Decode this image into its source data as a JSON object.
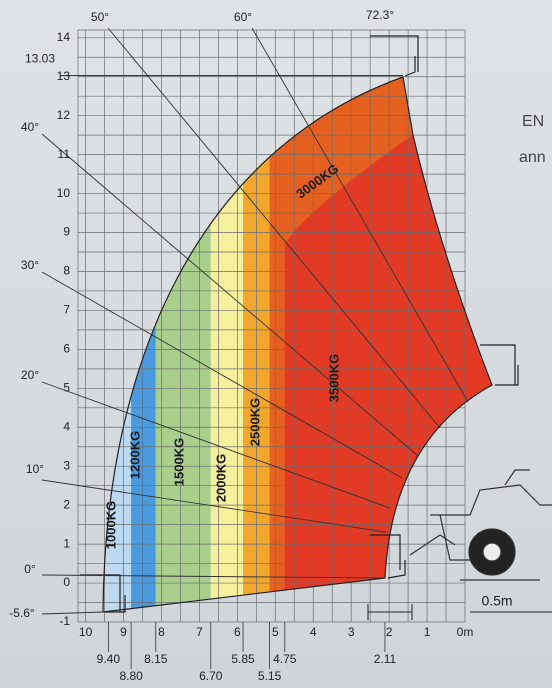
{
  "chart_data": {
    "type": "load-chart",
    "xlim": [
      10.2,
      0
    ],
    "ylim": [
      -1,
      14.2
    ],
    "xticks": [
      10,
      9,
      8,
      7,
      6,
      5,
      4,
      3,
      2,
      1,
      {
        "value": 0,
        "label": "0m"
      }
    ],
    "yticks": [
      -1,
      0,
      1,
      2,
      3,
      4,
      5,
      6,
      7,
      8,
      9,
      10,
      11,
      12,
      13,
      14
    ],
    "grid": true,
    "x_marks": [
      {
        "value": 9.4,
        "label": "9.40"
      },
      {
        "value": 8.8,
        "label": "8.80"
      },
      8.15,
      {
        "value": 6.7,
        "label": "6.70"
      },
      5.85,
      5.15,
      4.75,
      2.11
    ],
    "y_marks": [
      13.03
    ],
    "zones": [
      {
        "name": "1000KG",
        "x0": 9.4,
        "x1": 8.8,
        "color": "#bcd9f2"
      },
      {
        "name": "1200KG",
        "x0": 8.8,
        "x1": 8.15,
        "color": "#4a9ae0"
      },
      {
        "name": "1500KG",
        "x0": 8.15,
        "x1": 6.7,
        "color": "#a9cf8d"
      },
      {
        "name": "2000KG",
        "x0": 6.7,
        "x1": 5.85,
        "color": "#f6ef9c"
      },
      {
        "name": "2500KG",
        "x0": 5.85,
        "x1": 5.15,
        "color": "#f2a62b"
      },
      {
        "name": "3000KG",
        "x0": 5.15,
        "x1": 0,
        "color": "#e6611f"
      },
      {
        "name": "3500KG",
        "x0": 4.75,
        "x1": 0,
        "color": "#e23a24"
      }
    ],
    "angle_labels": [
      "72.3°",
      "60°",
      "50°",
      "40°",
      "30°",
      "20°",
      "10°",
      "0°",
      "-5.6°"
    ],
    "dimension_label": "0.5m",
    "side_text": [
      "EN",
      "ann"
    ]
  }
}
